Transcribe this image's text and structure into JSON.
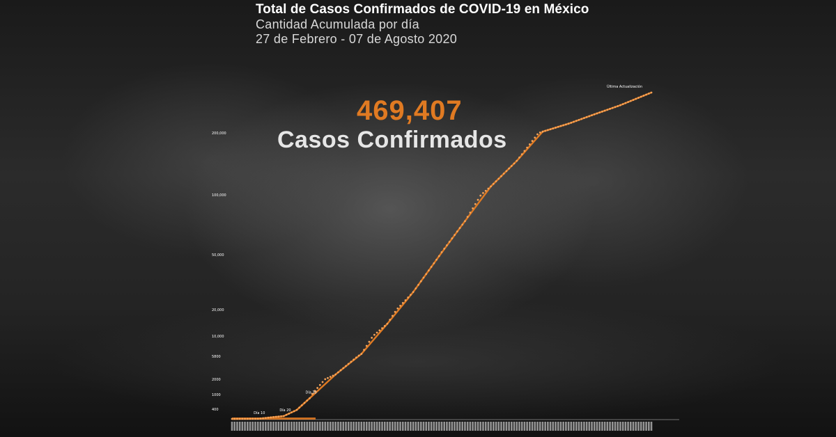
{
  "header": {
    "title": "Total de Casos Confirmados de COVID-19 en México",
    "subtitle": "Cantidad Acumulada por día",
    "date_range": "27 de Febrero - 07 de Agosto 2020"
  },
  "headline": {
    "value": "469,407",
    "label": "Casos Confirmados"
  },
  "colors": {
    "accent": "#e07a22",
    "text": "#ffffff"
  },
  "chart_data": {
    "type": "line",
    "title": "Total de Casos Confirmados de COVID-19 en México",
    "xlabel": "",
    "ylabel": "",
    "x_start": "2020-02-27",
    "x_end": "2020-08-07",
    "y_ticks": [
      400,
      1000,
      2000,
      5800,
      10000,
      20000,
      50000,
      100000,
      200000
    ],
    "y_tick_labels": [
      "400",
      "1000",
      "2000",
      "5800",
      "10,000",
      "20,000",
      "50,000",
      "100,000",
      "200,000"
    ],
    "y_scale": "non-linear",
    "annotations": [
      {
        "label": "Día 10",
        "date": "2020-03-08"
      },
      {
        "label": "Día 20",
        "date": "2020-03-18"
      },
      {
        "label": "Día 30",
        "date": "2020-03-28"
      },
      {
        "label": "Última Actualización",
        "date": "2020-08-07",
        "value": 469407
      }
    ],
    "series": [
      {
        "color": "#e07a22",
        "x": [
          "2020-02-27",
          "2020-03-08",
          "2020-03-18",
          "2020-03-23",
          "2020-03-28",
          "2020-04-07",
          "2020-04-17",
          "2020-04-27",
          "2020-05-07",
          "2020-05-17",
          "2020-05-27",
          "2020-06-06",
          "2020-06-16",
          "2020-06-26",
          "2020-07-06",
          "2020-07-16",
          "2020-07-26",
          "2020-08-07"
        ],
        "values": [
          1,
          7,
          118,
          367,
          848,
          2785,
          6297,
          14677,
          29616,
          49219,
          78023,
          113619,
          154863,
          208392,
          261750,
          324041,
          385036,
          469407
        ]
      }
    ],
    "grid": false,
    "legend": "none"
  }
}
